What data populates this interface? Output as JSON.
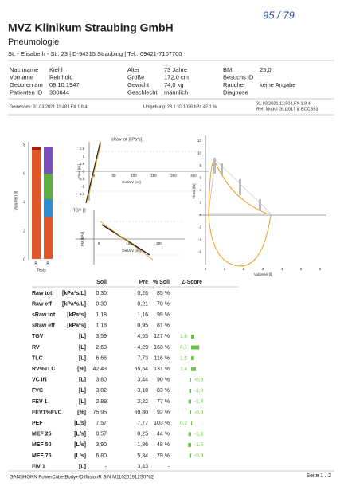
{
  "handwritten": "95 / 79",
  "header": {
    "title": "MVZ Klinikum Straubing GmbH",
    "subtitle": "Pneumologie",
    "address": "St. - Elisabeth - Str. 23 | D-94315 Straubing | Tel.: 09421-7107700"
  },
  "patient": {
    "columns": [
      [
        {
          "label": "Nachname",
          "value": "Kiehl"
        },
        {
          "label": "Vorname",
          "value": "Reinhold"
        },
        {
          "label": "Geboren am",
          "value": "08.10.1947"
        },
        {
          "label": "Patienten ID",
          "value": "300644"
        }
      ],
      [
        {
          "label": "Alter",
          "value": "73 Jahre"
        },
        {
          "label": "Größe",
          "value": "172,0 cm"
        },
        {
          "label": "Gewicht",
          "value": "74,0 kg"
        },
        {
          "label": "Geschlecht",
          "value": "männlich"
        }
      ],
      [
        {
          "label": "BMI",
          "value": "25,0"
        },
        {
          "label": "Besuchs ID"
        },
        {
          "label": "Raucher",
          "value": "keine Angabe"
        },
        {
          "label": "Diagnose"
        }
      ]
    ]
  },
  "measurement": {
    "left": "Gemessen:  31.03.2021 11:48  LFX 1.8.4",
    "center": "Umgebung:  23,1 °C  1026 hPa  42,1 %",
    "right": [
      "31.03.2021 11:50  LFX 1.8.4",
      "Ref. Modul  GLI2017 & ECCS93"
    ]
  },
  "charts": {
    "volume": {
      "y_label": "Volumen [l]",
      "yticks": [
        "8",
        "6",
        "4",
        "2",
        "0"
      ],
      "categories": [
        "B",
        "B"
      ],
      "x_label": "Tests"
    },
    "sraw": {
      "title": "sRaw tot",
      "unit": "[kPa*s]",
      "y_label": "Flow [l/s]",
      "yticks": [
        "1,5",
        "1",
        "0,5",
        "0",
        "-0,5",
        "-1",
        "-1,5"
      ],
      "xticks": [
        "0",
        "50",
        "100",
        "150",
        "200",
        "250"
      ],
      "x_label": "Delta V [ml]"
    },
    "tgv": {
      "title": "TGV [l]",
      "y_label": "PM [kPa]",
      "xticks": [
        "0",
        "100",
        "200"
      ],
      "x_label": "Delta V [ml]"
    },
    "flow_volume": {
      "y_label": "Fluss [l/s]",
      "yticks": [
        "12",
        "10",
        "8",
        "6",
        "4",
        "2",
        "0",
        "-2",
        "-4",
        "-6"
      ],
      "xticks": [
        "0",
        "1",
        "2",
        "3",
        "4",
        "5",
        "6"
      ],
      "x_label": "Volumen [l]"
    }
  },
  "table": {
    "headers": [
      "Soll",
      "Pre",
      "% Soll",
      "Z-Score"
    ],
    "rows": [
      [
        "Raw tot",
        "[kPa*s/L]",
        "0,30",
        "0,26",
        "85 %"
      ],
      [
        "Raw eff",
        "[kPa*s/L]",
        "0,30",
        "0,21",
        "70 %"
      ],
      [
        "sRaw tot",
        "[kPa*s]",
        "1,18",
        "1,16",
        "99 %"
      ],
      [
        "sRaw eff",
        "[kPa*s]",
        "1,18",
        "0,95",
        "81 %"
      ],
      [
        "TGV",
        "[L]",
        "3,59",
        "4,55",
        "127 %",
        "1,6"
      ],
      [
        "RV",
        "[L]",
        "2,63",
        "4,29",
        "163 %",
        "4,1"
      ],
      [
        "TLC",
        "[L]",
        "6,66",
        "7,73",
        "116 %",
        "1,5"
      ],
      [
        "RV%TLC",
        "[%]",
        "42,43",
        "55,54",
        "131 %",
        "2,4"
      ],
      [
        "VC IN",
        "[L]",
        "3,80",
        "3,44",
        "90 %",
        "-0,6"
      ],
      [
        "FVC",
        "[L]",
        "3,82",
        "3,18",
        "83 %",
        "-1,0"
      ],
      [
        "FEV 1",
        "[L]",
        "2,89",
        "2,22",
        "77 %",
        "-1,3"
      ],
      [
        "FEV1%FVC",
        "[%]",
        "75,95",
        "69,80",
        "92 %",
        "-0,8"
      ],
      [
        "PEF",
        "[L/s]",
        "7,57",
        "7,77",
        "103 %",
        "0,2"
      ],
      [
        "MEF 25",
        "[L/s]",
        "0,57",
        "0,25",
        "44 %",
        "-1,3"
      ],
      [
        "MEF 50",
        "[L/s]",
        "3,90",
        "1,86",
        "48 %",
        "-1,5"
      ],
      [
        "MEF 75",
        "[L/s]",
        "6,80",
        "5,34",
        "79 %",
        "-0,9"
      ],
      [
        "FIV 1",
        "[L]",
        "-",
        "3,43",
        "-"
      ]
    ]
  },
  "footer": {
    "device": "GANSHORN PowerCube Body+/DiffusionR    S/N M110201912S0762",
    "page": "Seite 1 / 2"
  }
}
